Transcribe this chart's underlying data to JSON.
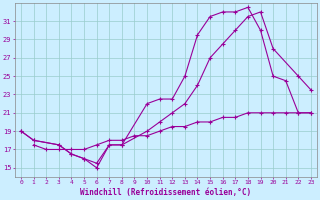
{
  "xlabel": "Windchill (Refroidissement éolien,°C)",
  "bg_color": "#cceeff",
  "line_color": "#990099",
  "grid_color": "#99cccc",
  "xlim": [
    -0.5,
    23.5
  ],
  "ylim": [
    14,
    33
  ],
  "yticks": [
    15,
    17,
    19,
    21,
    23,
    25,
    27,
    29,
    31
  ],
  "xticks": [
    0,
    1,
    2,
    3,
    4,
    5,
    6,
    7,
    8,
    9,
    10,
    11,
    12,
    13,
    14,
    15,
    16,
    17,
    18,
    19,
    20,
    21,
    22,
    23
  ],
  "line1_x": [
    0,
    1,
    3,
    4,
    5,
    6,
    7,
    8,
    10,
    11,
    12,
    13,
    14,
    15,
    16,
    17,
    18,
    19,
    20,
    21,
    22,
    23
  ],
  "line1_y": [
    19,
    18,
    17.5,
    16.5,
    16,
    15,
    17.5,
    17.5,
    22,
    22.5,
    22.5,
    25,
    29.5,
    31.5,
    32,
    32,
    32.5,
    30,
    25,
    24.5,
    21,
    21
  ],
  "line2_x": [
    0,
    1,
    3,
    4,
    5,
    6,
    7,
    8,
    10,
    11,
    12,
    13,
    14,
    15,
    16,
    17,
    18,
    19,
    20,
    22,
    23
  ],
  "line2_y": [
    19,
    18,
    17.5,
    16.5,
    16,
    15.5,
    17.5,
    17.5,
    19,
    20,
    21,
    22,
    24,
    27,
    28.5,
    30,
    31.5,
    32,
    28,
    25,
    23.5
  ],
  "line3_x": [
    1,
    2,
    3,
    4,
    5,
    6,
    7,
    8,
    9,
    10,
    11,
    12,
    13,
    14,
    15,
    16,
    17,
    18,
    19,
    20,
    21,
    22,
    23
  ],
  "line3_y": [
    17.5,
    17,
    17,
    17,
    17,
    17.5,
    18,
    18,
    18.5,
    18.5,
    19,
    19.5,
    19.5,
    20,
    20,
    20.5,
    20.5,
    21,
    21,
    21,
    21,
    21,
    21
  ]
}
